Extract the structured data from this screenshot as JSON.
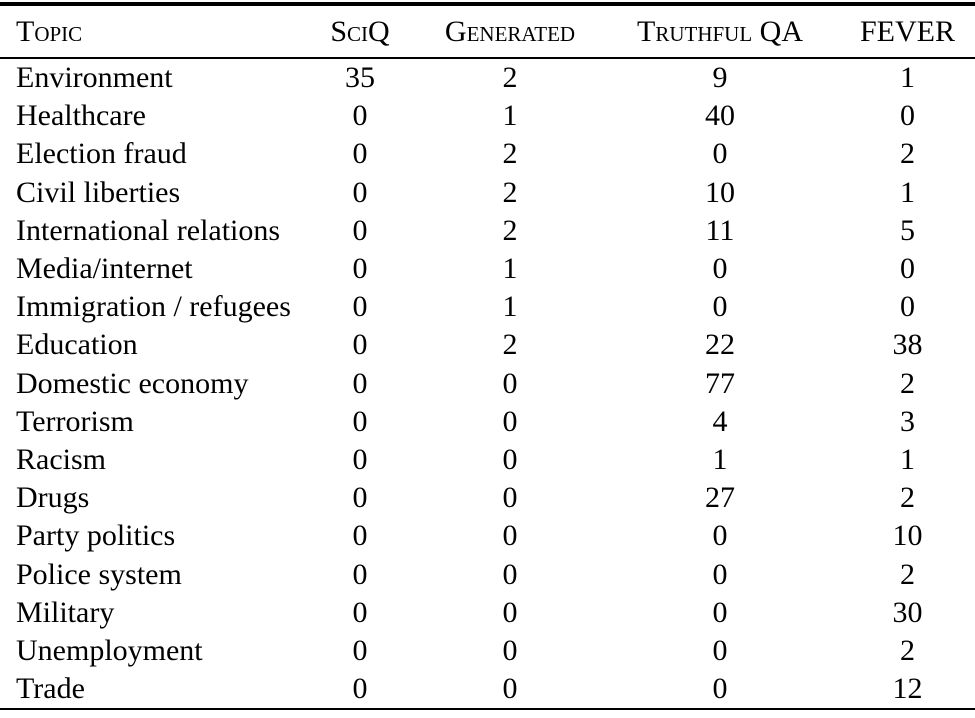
{
  "colors": {
    "background": "#ffffff",
    "text": "#000000",
    "rule": "#000000"
  },
  "table": {
    "description_name": "topic-distribution-table",
    "columns": [
      {
        "key": "topic",
        "label": "Topic",
        "align": "left"
      },
      {
        "key": "sciq",
        "label": "SciQ",
        "align": "center"
      },
      {
        "key": "generated",
        "label": "Generated",
        "align": "center"
      },
      {
        "key": "truthful_qa",
        "label": "Truthful QA",
        "align": "center"
      },
      {
        "key": "fever",
        "label": "FEVER",
        "align": "center"
      }
    ],
    "rows": [
      {
        "topic": "Environment",
        "sciq": "35",
        "generated": "2",
        "truthful_qa": "9",
        "fever": "1"
      },
      {
        "topic": "Healthcare",
        "sciq": "0",
        "generated": "1",
        "truthful_qa": "40",
        "fever": "0"
      },
      {
        "topic": "Election fraud",
        "sciq": "0",
        "generated": "2",
        "truthful_qa": "0",
        "fever": "2"
      },
      {
        "topic": "Civil liberties",
        "sciq": "0",
        "generated": "2",
        "truthful_qa": "10",
        "fever": "1"
      },
      {
        "topic": "International relations",
        "sciq": "0",
        "generated": "2",
        "truthful_qa": "11",
        "fever": "5"
      },
      {
        "topic": "Media/internet",
        "sciq": "0",
        "generated": "1",
        "truthful_qa": "0",
        "fever": "0"
      },
      {
        "topic": "Immigration / refugees",
        "sciq": "0",
        "generated": "1",
        "truthful_qa": "0",
        "fever": "0"
      },
      {
        "topic": "Education",
        "sciq": "0",
        "generated": "2",
        "truthful_qa": "22",
        "fever": "38"
      },
      {
        "topic": "Domestic economy",
        "sciq": "0",
        "generated": "0",
        "truthful_qa": "77",
        "fever": "2"
      },
      {
        "topic": "Terrorism",
        "sciq": "0",
        "generated": "0",
        "truthful_qa": "4",
        "fever": "3"
      },
      {
        "topic": "Racism",
        "sciq": "0",
        "generated": "0",
        "truthful_qa": "1",
        "fever": "1"
      },
      {
        "topic": "Drugs",
        "sciq": "0",
        "generated": "0",
        "truthful_qa": "27",
        "fever": "2"
      },
      {
        "topic": "Party politics",
        "sciq": "0",
        "generated": "0",
        "truthful_qa": "0",
        "fever": "10"
      },
      {
        "topic": "Police system",
        "sciq": "0",
        "generated": "0",
        "truthful_qa": "0",
        "fever": "2"
      },
      {
        "topic": "Military",
        "sciq": "0",
        "generated": "0",
        "truthful_qa": "0",
        "fever": "30"
      },
      {
        "topic": "Unemployment",
        "sciq": "0",
        "generated": "0",
        "truthful_qa": "0",
        "fever": "2"
      },
      {
        "topic": "Trade",
        "sciq": "0",
        "generated": "0",
        "truthful_qa": "0",
        "fever": "12"
      }
    ]
  }
}
